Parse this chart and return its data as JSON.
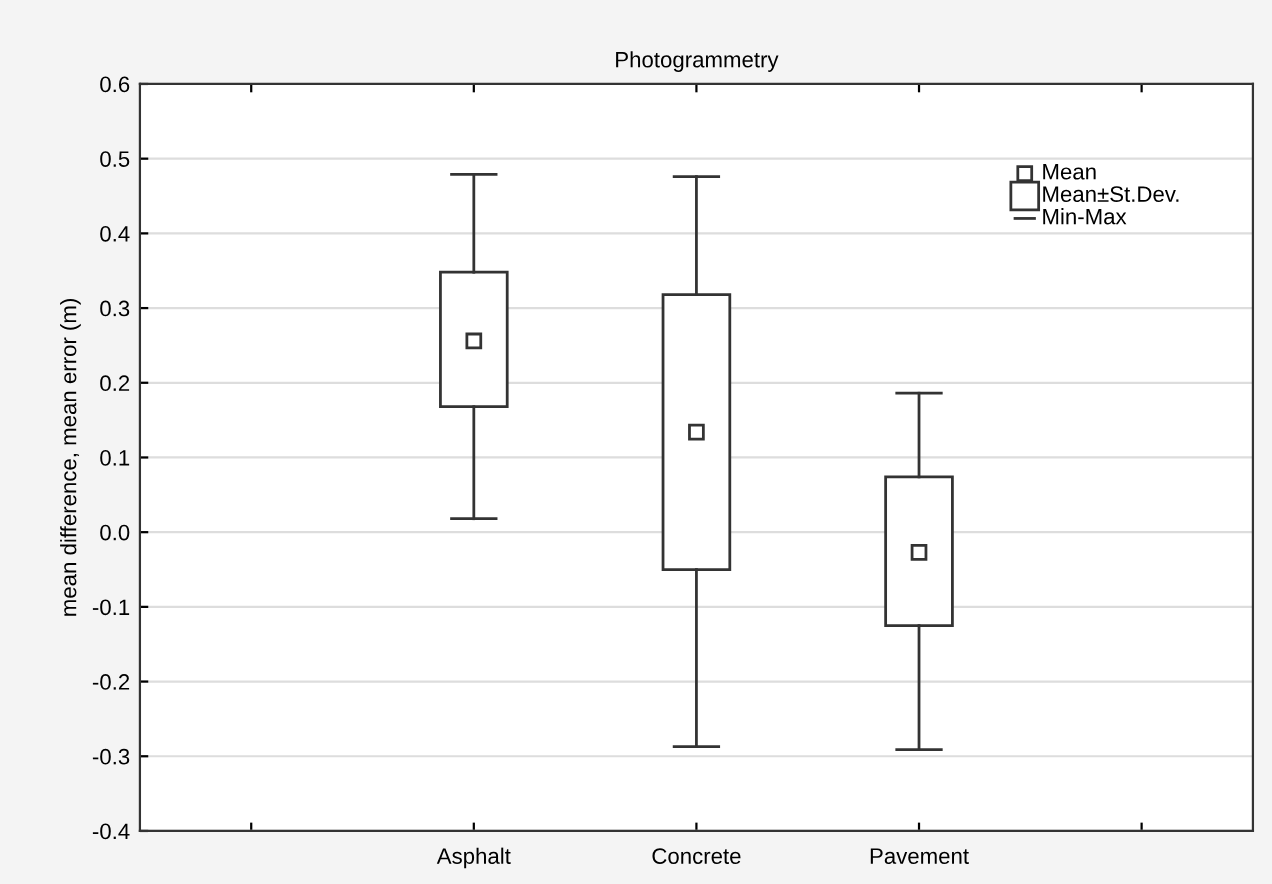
{
  "chart_data": {
    "type": "box",
    "title": "Photogrammetry",
    "ylabel": "mean difference, mean error (m)",
    "categories": [
      null,
      "Asphalt",
      "Concrete",
      "Pavement",
      null
    ],
    "boxes": [
      null,
      {
        "low": 0.018,
        "q1": 0.168,
        "q3": 0.348,
        "high": 0.479,
        "mean": 0.256
      },
      {
        "low": -0.287,
        "q1": -0.05,
        "q3": 0.318,
        "high": 0.476,
        "mean": 0.134
      },
      {
        "low": -0.291,
        "q1": -0.125,
        "q3": 0.074,
        "high": 0.186,
        "mean": -0.027
      },
      null
    ],
    "annotations": [
      "Mean",
      "Mean±St.Dev.",
      "Min-Max"
    ],
    "ylim": [
      -0.4,
      0.6
    ],
    "yticks": [
      {
        "value": -0.4,
        "label": "-0.4"
      },
      {
        "value": -0.3,
        "label": "-0.3"
      },
      {
        "value": -0.2,
        "label": "-0.2"
      },
      {
        "value": -0.1,
        "label": "-0.1"
      },
      {
        "value": 0.0,
        "label": "0.0"
      },
      0.1,
      0.2,
      0.3,
      0.4,
      0.5,
      0.6
    ],
    "grid": "y",
    "marker": "square"
  }
}
